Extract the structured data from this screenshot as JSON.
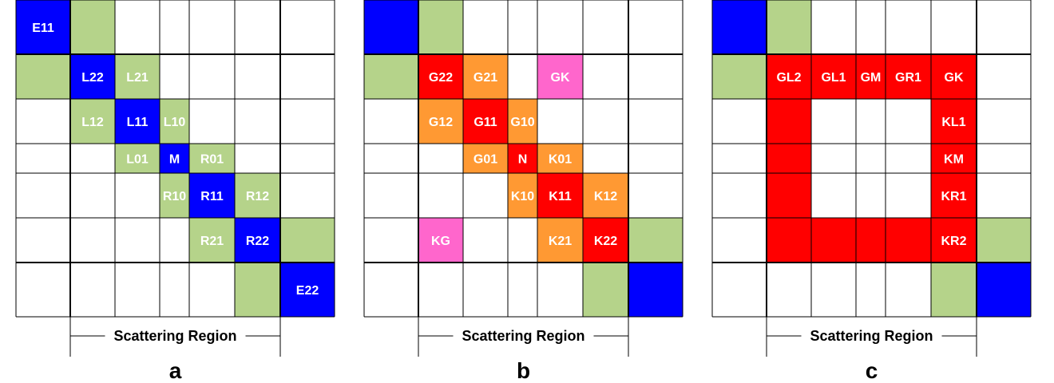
{
  "colors": {
    "blue": "#0000ff",
    "green": "#b5d38a",
    "red": "#ff0000",
    "orange": "#ff9933",
    "pink": "#ff66cc",
    "white": "#ffffff",
    "grid": "#000000"
  },
  "panels": [
    {
      "letter": "a",
      "region_label": "Scattering Region",
      "cells": [
        {
          "r": 0,
          "c": 0,
          "color": "blue",
          "label": "E11"
        },
        {
          "r": 0,
          "c": 1,
          "color": "green",
          "label": ""
        },
        {
          "r": 1,
          "c": 0,
          "color": "green",
          "label": ""
        },
        {
          "r": 1,
          "c": 1,
          "color": "blue",
          "label": "L22"
        },
        {
          "r": 1,
          "c": 2,
          "color": "green",
          "label": "L21"
        },
        {
          "r": 2,
          "c": 1,
          "color": "green",
          "label": "L12"
        },
        {
          "r": 2,
          "c": 2,
          "color": "blue",
          "label": "L11"
        },
        {
          "r": 2,
          "c": 3,
          "color": "green",
          "label": "L10"
        },
        {
          "r": 3,
          "c": 2,
          "color": "green",
          "label": "L01"
        },
        {
          "r": 3,
          "c": 3,
          "color": "blue",
          "label": "M"
        },
        {
          "r": 3,
          "c": 4,
          "color": "green",
          "label": "R01"
        },
        {
          "r": 4,
          "c": 3,
          "color": "green",
          "label": "R10"
        },
        {
          "r": 4,
          "c": 4,
          "color": "blue",
          "label": "R11"
        },
        {
          "r": 4,
          "c": 5,
          "color": "green",
          "label": "R12"
        },
        {
          "r": 5,
          "c": 4,
          "color": "green",
          "label": "R21"
        },
        {
          "r": 5,
          "c": 5,
          "color": "blue",
          "label": "R22"
        },
        {
          "r": 5,
          "c": 6,
          "color": "green",
          "label": ""
        },
        {
          "r": 6,
          "c": 5,
          "color": "green",
          "label": ""
        },
        {
          "r": 6,
          "c": 6,
          "color": "blue",
          "label": "E22"
        }
      ]
    },
    {
      "letter": "b",
      "region_label": "Scattering Region",
      "cells": [
        {
          "r": 0,
          "c": 0,
          "color": "blue",
          "label": ""
        },
        {
          "r": 0,
          "c": 1,
          "color": "green",
          "label": ""
        },
        {
          "r": 1,
          "c": 0,
          "color": "green",
          "label": ""
        },
        {
          "r": 1,
          "c": 1,
          "color": "red",
          "label": "G22"
        },
        {
          "r": 1,
          "c": 2,
          "color": "orange",
          "label": "G21"
        },
        {
          "r": 1,
          "c": 4,
          "color": "pink",
          "label": "GK"
        },
        {
          "r": 2,
          "c": 1,
          "color": "orange",
          "label": "G12"
        },
        {
          "r": 2,
          "c": 2,
          "color": "red",
          "label": "G11"
        },
        {
          "r": 2,
          "c": 3,
          "color": "orange",
          "label": "G10"
        },
        {
          "r": 3,
          "c": 2,
          "color": "orange",
          "label": "G01"
        },
        {
          "r": 3,
          "c": 3,
          "color": "red",
          "label": "N"
        },
        {
          "r": 3,
          "c": 4,
          "color": "orange",
          "label": "K01"
        },
        {
          "r": 4,
          "c": 3,
          "color": "orange",
          "label": "K10"
        },
        {
          "r": 4,
          "c": 4,
          "color": "red",
          "label": "K11"
        },
        {
          "r": 4,
          "c": 5,
          "color": "orange",
          "label": "K12"
        },
        {
          "r": 5,
          "c": 1,
          "color": "pink",
          "label": "KG"
        },
        {
          "r": 5,
          "c": 4,
          "color": "orange",
          "label": "K21"
        },
        {
          "r": 5,
          "c": 5,
          "color": "red",
          "label": "K22"
        },
        {
          "r": 5,
          "c": 6,
          "color": "green",
          "label": ""
        },
        {
          "r": 6,
          "c": 5,
          "color": "green",
          "label": ""
        },
        {
          "r": 6,
          "c": 6,
          "color": "blue",
          "label": ""
        }
      ]
    },
    {
      "letter": "c",
      "region_label": "Scattering Region",
      "cells": [
        {
          "r": 0,
          "c": 0,
          "color": "blue",
          "label": ""
        },
        {
          "r": 0,
          "c": 1,
          "color": "green",
          "label": ""
        },
        {
          "r": 1,
          "c": 0,
          "color": "green",
          "label": ""
        },
        {
          "r": 1,
          "c": 1,
          "color": "red",
          "label": "GL2"
        },
        {
          "r": 1,
          "c": 2,
          "color": "red",
          "label": "GL1"
        },
        {
          "r": 1,
          "c": 3,
          "color": "red",
          "label": "GM"
        },
        {
          "r": 1,
          "c": 4,
          "color": "red",
          "label": "GR1"
        },
        {
          "r": 1,
          "c": 5,
          "color": "red",
          "label": "GK"
        },
        {
          "r": 2,
          "c": 1,
          "color": "red",
          "label": ""
        },
        {
          "r": 2,
          "c": 5,
          "color": "red",
          "label": "KL1"
        },
        {
          "r": 3,
          "c": 1,
          "color": "red",
          "label": ""
        },
        {
          "r": 3,
          "c": 5,
          "color": "red",
          "label": "KM"
        },
        {
          "r": 4,
          "c": 1,
          "color": "red",
          "label": ""
        },
        {
          "r": 4,
          "c": 5,
          "color": "red",
          "label": "KR1"
        },
        {
          "r": 5,
          "c": 1,
          "color": "red",
          "label": ""
        },
        {
          "r": 5,
          "c": 2,
          "color": "red",
          "label": ""
        },
        {
          "r": 5,
          "c": 3,
          "color": "red",
          "label": ""
        },
        {
          "r": 5,
          "c": 4,
          "color": "red",
          "label": ""
        },
        {
          "r": 5,
          "c": 5,
          "color": "red",
          "label": "KR2"
        },
        {
          "r": 5,
          "c": 6,
          "color": "green",
          "label": ""
        },
        {
          "r": 6,
          "c": 5,
          "color": "green",
          "label": ""
        },
        {
          "r": 6,
          "c": 6,
          "color": "blue",
          "label": ""
        }
      ]
    }
  ]
}
